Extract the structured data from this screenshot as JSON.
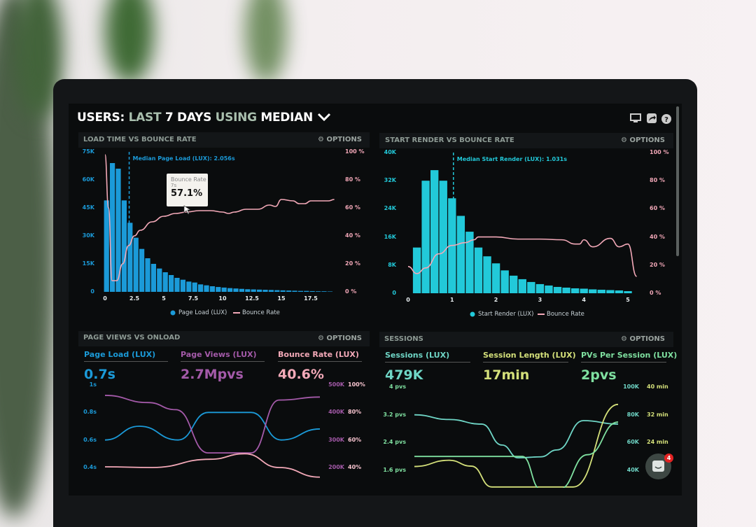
{
  "header": {
    "title_users": "USERS:",
    "title_last": "LAST",
    "title_7days": "7 DAYS",
    "title_using": "USING",
    "title_median": "MEDIAN",
    "icons": [
      "monitor-icon",
      "share-icon",
      "help-icon"
    ]
  },
  "options_label": "OPTIONS",
  "colors": {
    "page_load": "#1b9ad8",
    "start_render": "#22c9d9",
    "bounce": "#f3a9b8",
    "page_views": "#a45aa9",
    "sessions": "#6fd6c6",
    "session_length": "#d4e07a",
    "pvs_per_session": "#7fe0a0"
  },
  "chart_data": [
    {
      "type": "bar",
      "title": "LOAD TIME VS BOUNCE RATE",
      "annotation": "Median Page Load (LUX): 2.056s",
      "median": 2.056,
      "tooltip": {
        "label": "Bounce Rate",
        "x": "7s",
        "value": "57.1%"
      },
      "x_ticks": [
        "0",
        "2.5",
        "5",
        "7.5",
        "10",
        "12.5",
        "15",
        "17.5"
      ],
      "xlim": [
        0,
        19.5
      ],
      "y_ticks": [
        "0",
        "15K",
        "30K",
        "45K",
        "60K",
        "75K"
      ],
      "ylim": [
        0,
        75000
      ],
      "y2_ticks": [
        "0 %",
        "20 %",
        "40 %",
        "60 %",
        "80 %",
        "100 %"
      ],
      "y2lim": [
        0,
        100
      ],
      "legend": [
        "Page Load (LUX)",
        "Bounce Rate"
      ],
      "bar_width": 0.5,
      "bars": {
        "name": "Page Load (LUX)",
        "x": [
          0,
          0.5,
          1,
          1.5,
          2,
          2.5,
          3,
          3.5,
          4,
          4.5,
          5,
          5.5,
          6,
          6.5,
          7,
          7.5,
          8,
          8.5,
          9,
          9.5,
          10,
          10.5,
          11,
          11.5,
          12,
          12.5,
          13,
          13.5,
          14,
          14.5,
          15,
          15.5,
          16,
          16.5,
          17,
          17.5,
          18,
          18.5,
          19
        ],
        "values": [
          49000,
          69000,
          66000,
          49000,
          37000,
          29000,
          23000,
          18000,
          15000,
          12500,
          10500,
          9000,
          7500,
          6500,
          5500,
          5000,
          4000,
          3500,
          3000,
          2600,
          2300,
          2000,
          1800,
          1600,
          1400,
          1300,
          1200,
          1100,
          1000,
          900,
          800,
          700,
          600,
          500,
          500,
          400,
          300,
          300,
          200
        ]
      },
      "line": {
        "name": "Bounce Rate",
        "x": [
          0,
          0.3,
          0.6,
          1,
          1.5,
          2,
          2.5,
          3,
          4,
          5,
          6,
          7,
          8,
          9,
          10,
          10.5,
          11,
          12,
          13,
          14,
          14.5,
          15,
          16,
          16.5,
          17,
          17.5,
          18,
          19,
          19.5
        ],
        "values": [
          98,
          60,
          8,
          8,
          20,
          33,
          40,
          44,
          50,
          54,
          56,
          57.1,
          58,
          58,
          57,
          56,
          57,
          59,
          59,
          62,
          61,
          66,
          65,
          63,
          63,
          65,
          65,
          65,
          66
        ]
      }
    },
    {
      "type": "bar",
      "title": "START RENDER VS BOUNCE RATE",
      "annotation": "Median Start Render (LUX): 1.031s",
      "median": 1.031,
      "x_ticks": [
        "0",
        "1",
        "2",
        "3",
        "4",
        "5"
      ],
      "xlim": [
        0,
        5.2
      ],
      "y_ticks": [
        "0",
        "8K",
        "16K",
        "24K",
        "32K",
        "40K"
      ],
      "ylim": [
        0,
        40000
      ],
      "y2_ticks": [
        "0 %",
        "20 %",
        "40 %",
        "60 %",
        "80 %",
        "100 %"
      ],
      "y2lim": [
        0,
        100
      ],
      "legend": [
        "Start Render (LUX)",
        "Bounce Rate"
      ],
      "bar_width": 0.2,
      "bars": {
        "name": "Start Render (LUX)",
        "x": [
          0.2,
          0.4,
          0.6,
          0.8,
          1,
          1.2,
          1.4,
          1.6,
          1.8,
          2,
          2.2,
          2.4,
          2.6,
          2.8,
          3,
          3.2,
          3.4,
          3.6,
          3.8,
          4,
          4.2,
          4.4,
          4.6,
          4.8,
          5
        ],
        "values": [
          13000,
          32000,
          35000,
          32000,
          27000,
          22000,
          17500,
          13000,
          10500,
          8500,
          6500,
          5000,
          4000,
          3200,
          2600,
          2200,
          1800,
          1600,
          1400,
          1300,
          1100,
          1000,
          900,
          800,
          600
        ]
      },
      "line": {
        "name": "Bounce Rate",
        "x": [
          0,
          0.2,
          0.4,
          0.7,
          1,
          1.3,
          1.5,
          1.6,
          2,
          2.5,
          3,
          3.5,
          3.8,
          3.9,
          4,
          4.2,
          4.6,
          4.8,
          5,
          5.2
        ],
        "values": [
          19,
          14,
          18,
          28,
          34,
          36,
          38,
          40,
          40,
          38.5,
          38.5,
          38,
          35,
          35,
          38,
          33,
          39,
          33,
          35,
          12
        ]
      }
    },
    {
      "type": "line",
      "title": "PAGE VIEWS VS ONLOAD",
      "metrics": [
        {
          "label": "Page Load (LUX)",
          "value": "0.7s"
        },
        {
          "label": "Page Views (LUX)",
          "value": "2.7Mpvs"
        },
        {
          "label": "Bounce Rate (LUX)",
          "value": "40.6%"
        }
      ],
      "y_ticks": [
        "0.4s",
        "0.6s",
        "0.8s",
        "1s"
      ],
      "ylim": [
        0.4,
        1.0
      ],
      "y2_ticks": [
        "200K",
        "300K",
        "400K",
        "500K"
      ],
      "y2lim": [
        200000,
        500000
      ],
      "y3_ticks": [
        "40%",
        "60%",
        "80%",
        "100%"
      ],
      "y3lim": [
        40,
        100
      ],
      "series": [
        {
          "name": "Page Load (LUX)",
          "axis": "y",
          "x": [
            0,
            1.6,
            3.4,
            4.8,
            6.8,
            8.2,
            10
          ],
          "values": [
            0.6,
            0.7,
            0.6,
            0.8,
            0.8,
            0.6,
            0.68
          ]
        },
        {
          "name": "Page Views (LUX)",
          "axis": "y2",
          "x": [
            0,
            2.0,
            3.3,
            4.8,
            6.8,
            8.1,
            10
          ],
          "values": [
            462000,
            436000,
            410000,
            253000,
            253000,
            445000,
            456000
          ]
        },
        {
          "name": "Bounce Rate (LUX)",
          "axis": "y3",
          "x": [
            0,
            2.2,
            4.9,
            6.5,
            8.1,
            10
          ],
          "values": [
            40.5,
            40,
            46,
            50,
            40,
            33
          ]
        }
      ]
    },
    {
      "type": "line",
      "title": "SESSIONS",
      "metrics": [
        {
          "label": "Sessions (LUX)",
          "value": "479K"
        },
        {
          "label": "Session Length (LUX)",
          "value": "17min"
        },
        {
          "label": "PVs Per Session (LUX)",
          "value": "2pvs"
        }
      ],
      "y_ticks": [
        "1.6 pvs",
        "2.4 pvs",
        "3.2 pvs",
        "4 pvs"
      ],
      "ylim": [
        1.6,
        4.0
      ],
      "y2_ticks": [
        "40K",
        "60K",
        "80K",
        "100K"
      ],
      "y2lim": [
        40000,
        100000
      ],
      "y3_ticks": [
        "",
        "24 min",
        "32 min",
        "40 min"
      ],
      "y3lim": [
        16,
        40
      ],
      "series": [
        {
          "name": "Sessions (LUX)",
          "axis": "y2",
          "x": [
            0,
            1.7,
            3.3,
            4.3,
            5.1,
            6.2,
            7,
            8.3,
            10
          ],
          "values": [
            80000,
            76600,
            73300,
            58200,
            49000,
            49700,
            54700,
            75800,
            73300
          ]
        },
        {
          "name": "Session Length (LUX)",
          "axis": "y3",
          "x": [
            0,
            1.7,
            2.8,
            3.8,
            7.8,
            10
          ],
          "values": [
            17.1,
            18.9,
            17.2,
            11.2,
            11.2,
            35
          ]
        },
        {
          "name": "PVs Per Session (LUX)",
          "axis": "y",
          "x": [
            0,
            5.3,
            6.2,
            7.1,
            8.5,
            10
          ],
          "values": [
            2.0,
            2.0,
            1.05,
            1.05,
            2.05,
            2.99
          ]
        }
      ]
    }
  ],
  "chat": {
    "badge": "4"
  }
}
